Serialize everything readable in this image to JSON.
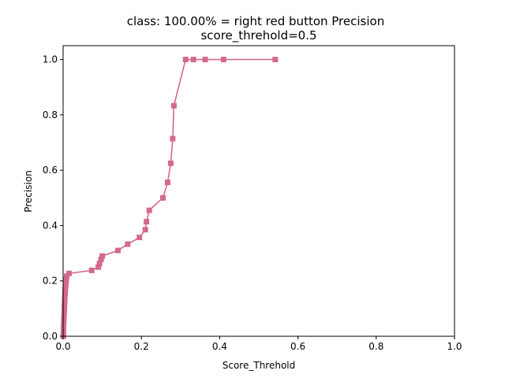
{
  "chart_data": {
    "type": "line",
    "title": "class: 100.00% = right red button Precision",
    "subtitle": "score_threhold=0.5",
    "xlabel": "Score_Threhold",
    "ylabel": "Precision",
    "xlim": [
      0,
      1
    ],
    "ylim": [
      0,
      1.05
    ],
    "x_ticks": [
      "0.0",
      "0.2",
      "0.4",
      "0.6",
      "0.8",
      "1.0"
    ],
    "y_ticks": [
      "0.0",
      "0.2",
      "0.4",
      "0.6",
      "0.8",
      "1.0"
    ],
    "grid": false,
    "color": "#d4698f",
    "marker": "square",
    "series": [
      {
        "x": [
          0.0005,
          0.0005,
          0.001,
          0.001,
          0.0015,
          0.002,
          0.0025,
          0.003,
          0.003,
          0.0035,
          0.004,
          0.004,
          0.0045,
          0.005,
          0.005,
          0.0055,
          0.006,
          0.006,
          0.007,
          0.0075,
          0.008,
          0.009,
          0.015,
          0.073,
          0.09,
          0.093,
          0.097,
          0.1,
          0.14,
          0.165,
          0.195,
          0.21,
          0.213,
          0.22,
          0.255,
          0.267,
          0.275,
          0.28,
          0.283,
          0.313,
          0.333,
          0.363,
          0.41,
          0.542
        ],
        "y": [
          0.0,
          0.01,
          0.02,
          0.035,
          0.05,
          0.065,
          0.08,
          0.095,
          0.105,
          0.115,
          0.125,
          0.135,
          0.145,
          0.155,
          0.16,
          0.17,
          0.175,
          0.185,
          0.19,
          0.2,
          0.205,
          0.217,
          0.227,
          0.238,
          0.25,
          0.263,
          0.278,
          0.29,
          0.31,
          0.333,
          0.357,
          0.385,
          0.414,
          0.455,
          0.5,
          0.556,
          0.625,
          0.714,
          0.833,
          1.0,
          1.0,
          1.0,
          1.0,
          1.0
        ]
      }
    ]
  }
}
